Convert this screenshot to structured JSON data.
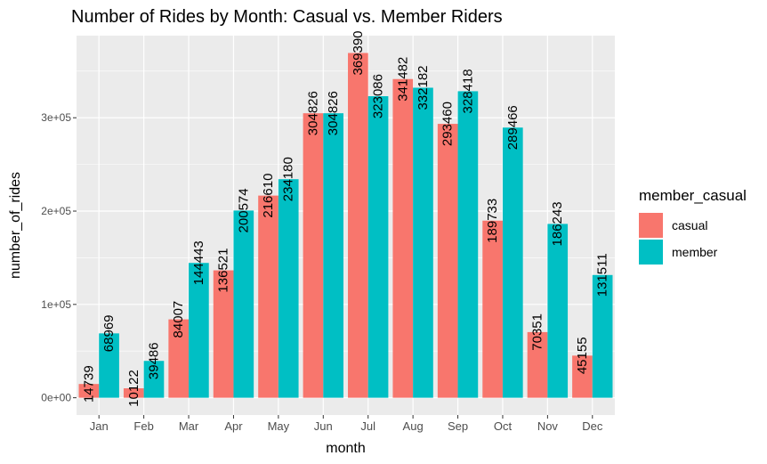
{
  "chart_data": {
    "type": "bar",
    "title": "Number of Rides by Month: Casual vs. Member Riders",
    "xlabel": "month",
    "ylabel": "number_of_rides",
    "categories": [
      "Jan",
      "Feb",
      "Mar",
      "Apr",
      "May",
      "Jun",
      "Jul",
      "Aug",
      "Sep",
      "Oct",
      "Nov",
      "Dec"
    ],
    "series": [
      {
        "name": "casual",
        "color": "#F8766D",
        "values": [
          14739,
          10122,
          84007,
          136521,
          216610,
          304826,
          369390,
          341482,
          293460,
          189733,
          70351,
          45155
        ],
        "labels": [
          "14739",
          "10122",
          "84007",
          "136521",
          "216610",
          "304826",
          "369390",
          "341482",
          "293460",
          "189733",
          "70351",
          "45155"
        ]
      },
      {
        "name": "member",
        "color": "#00BFC4",
        "values": [
          68969,
          39486,
          144443,
          200574,
          234180,
          304826,
          323086,
          332182,
          328418,
          289466,
          186243,
          131511
        ],
        "labels": [
          "68969",
          "39486",
          "144443",
          "200574",
          "234180",
          "304826",
          "323086",
          "332182",
          "328418",
          "289466",
          "186243",
          "131511"
        ]
      }
    ],
    "yticks": [
      0,
      100000,
      200000,
      300000
    ],
    "ytick_labels": [
      "0e+00",
      "1e+05",
      "2e+05",
      "3e+05"
    ],
    "ylim": [
      -18500,
      388000
    ],
    "legend": {
      "title": "member_casual",
      "position": "right"
    },
    "grid": true,
    "panel_color": "#EBEBEB"
  }
}
